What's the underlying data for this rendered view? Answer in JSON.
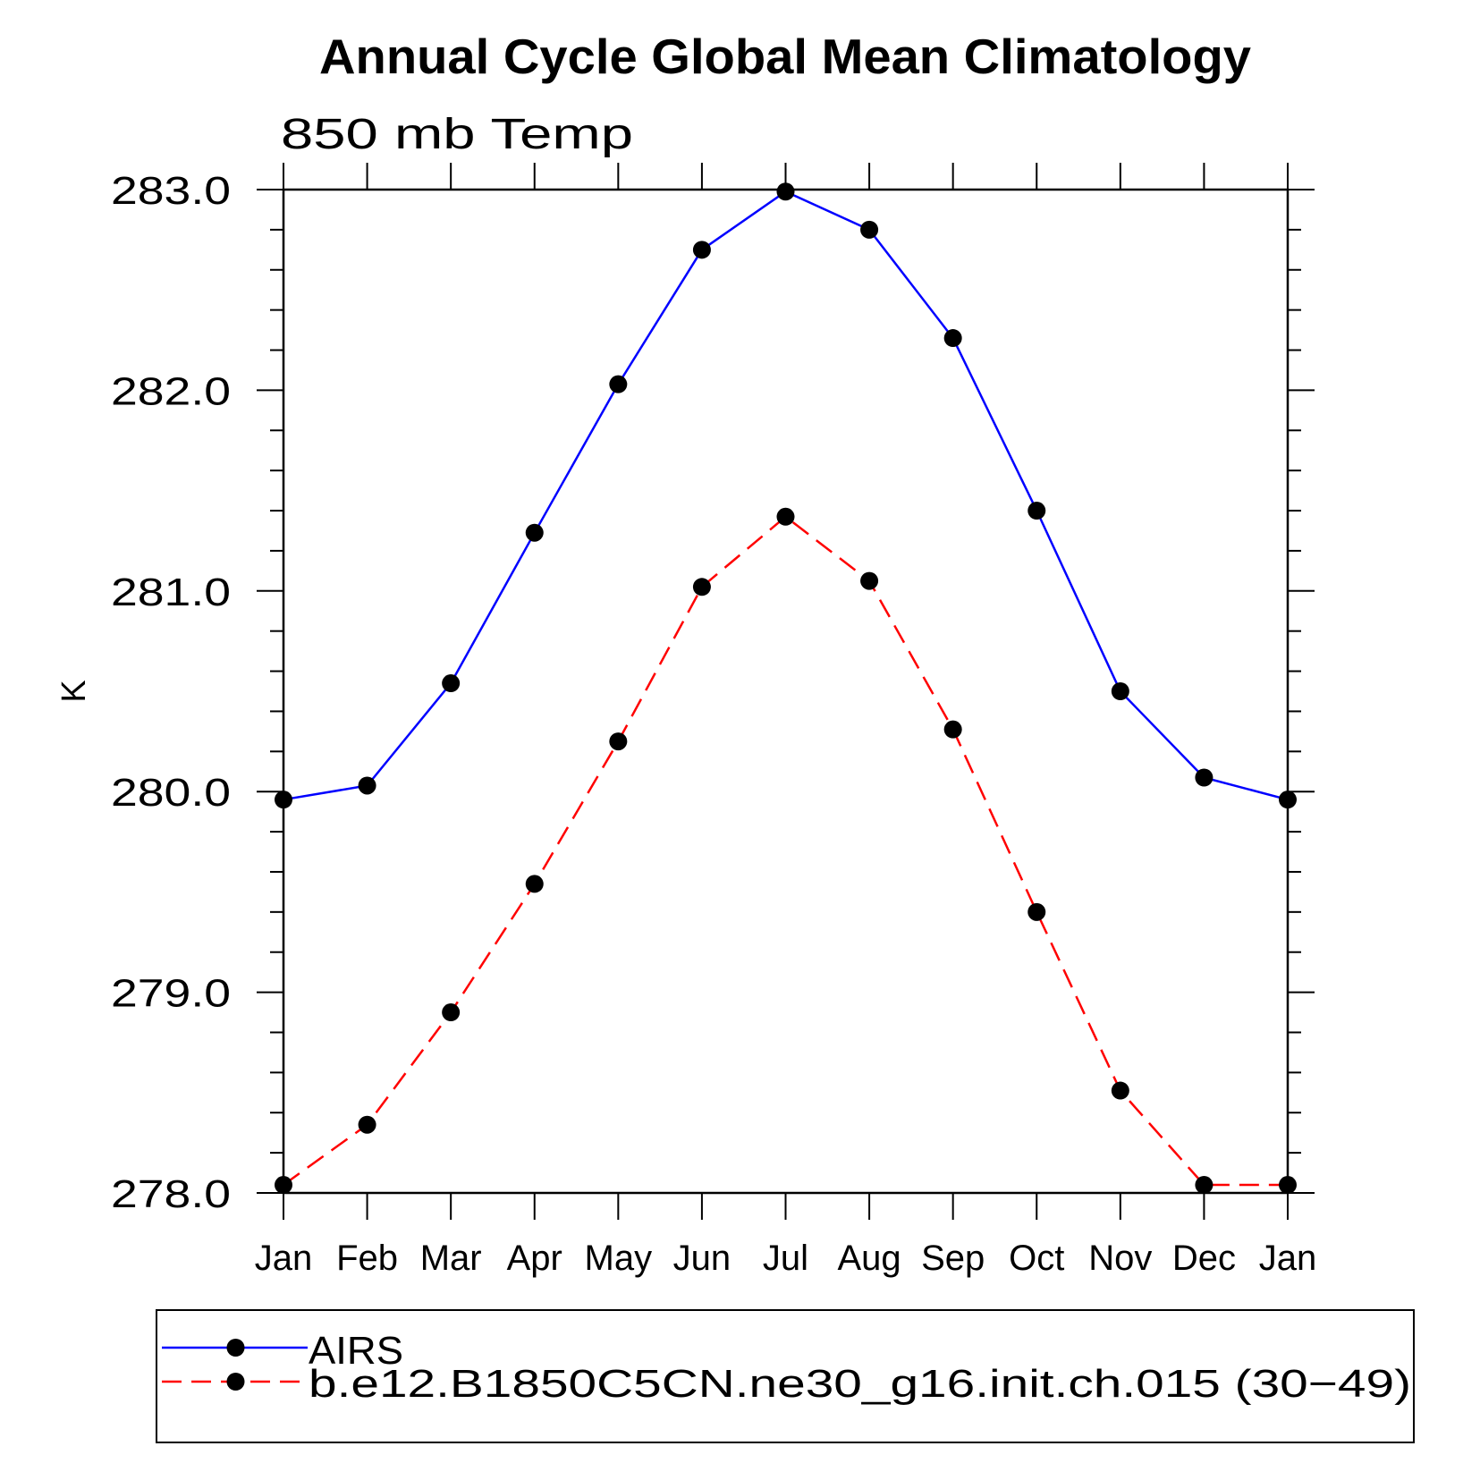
{
  "chart_data": {
    "type": "line",
    "title": "Annual Cycle Global Mean Climatology",
    "subtitle": "850 mb Temp",
    "ylabel": "K",
    "categories": [
      "Jan",
      "Feb",
      "Mar",
      "Apr",
      "May",
      "Jun",
      "Jul",
      "Aug",
      "Sep",
      "Oct",
      "Nov",
      "Dec",
      "Jan"
    ],
    "ylim": [
      278,
      283
    ],
    "yticks": [
      278,
      279,
      280,
      281,
      282,
      283
    ],
    "yticklabels": [
      "278.0",
      "279.0",
      "280.0",
      "281.0",
      "282.0",
      "283.0"
    ],
    "y_minor_step": 0.2,
    "grid": false,
    "legend_placement": "bottom",
    "marker_color": "#000000",
    "series": [
      {
        "name": "AIRS",
        "color": "#0000ff",
        "line_style": "solid",
        "values": [
          279.96,
          280.03,
          280.54,
          281.29,
          282.03,
          282.7,
          282.99,
          282.8,
          282.26,
          281.4,
          280.5,
          280.07,
          279.96
        ]
      },
      {
        "name": "b.e12.B1850C5CN.ne30_g16.init.ch.015 (30−49)",
        "color": "#ff0000",
        "line_style": "dashed",
        "values": [
          278.04,
          278.34,
          278.9,
          279.54,
          280.25,
          281.02,
          281.37,
          281.05,
          280.31,
          279.4,
          278.51,
          278.04,
          278.04
        ]
      }
    ]
  }
}
